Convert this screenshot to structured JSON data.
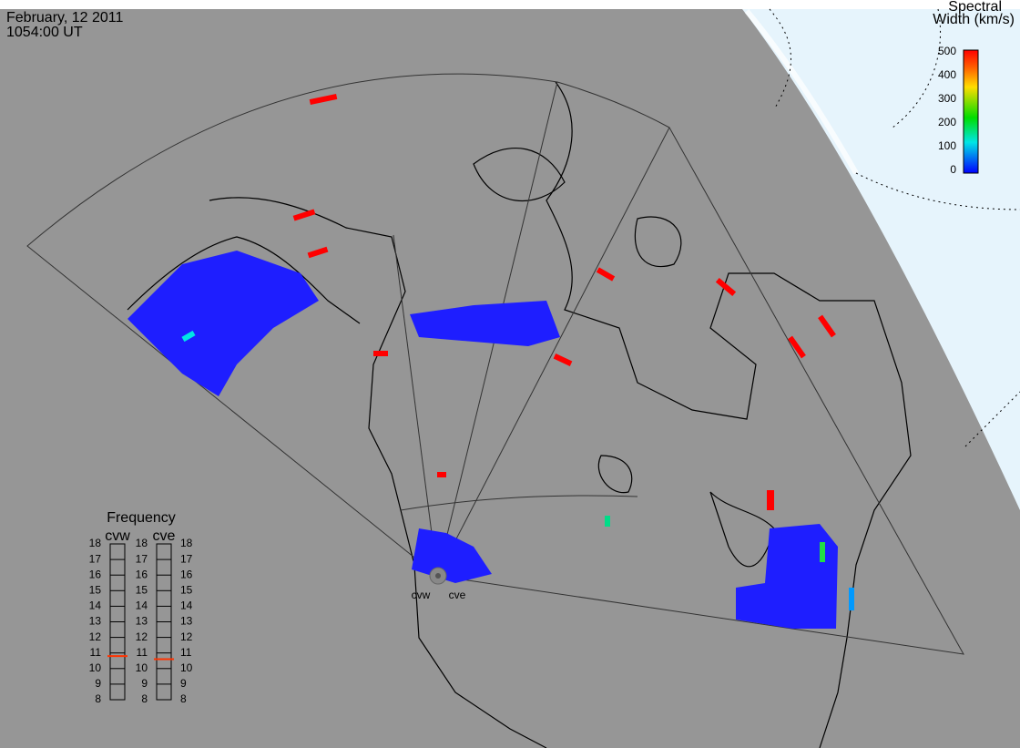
{
  "header": {
    "date": "February, 12 2011",
    "time": "1054:00 UT"
  },
  "colorbar": {
    "title": [
      "Spectral",
      "Width (km/s)"
    ],
    "ticks": [
      0,
      100,
      200,
      300,
      400,
      500
    ]
  },
  "frequency": {
    "title": "Frequency",
    "radars": [
      {
        "name": "cvw",
        "value": 10.8
      },
      {
        "name": "cve",
        "value": 10.6
      }
    ],
    "ticks": [
      8,
      9,
      10,
      11,
      12,
      13,
      14,
      15,
      16,
      17,
      18
    ]
  },
  "radar_labels": [
    "cvw",
    "cve"
  ]
}
